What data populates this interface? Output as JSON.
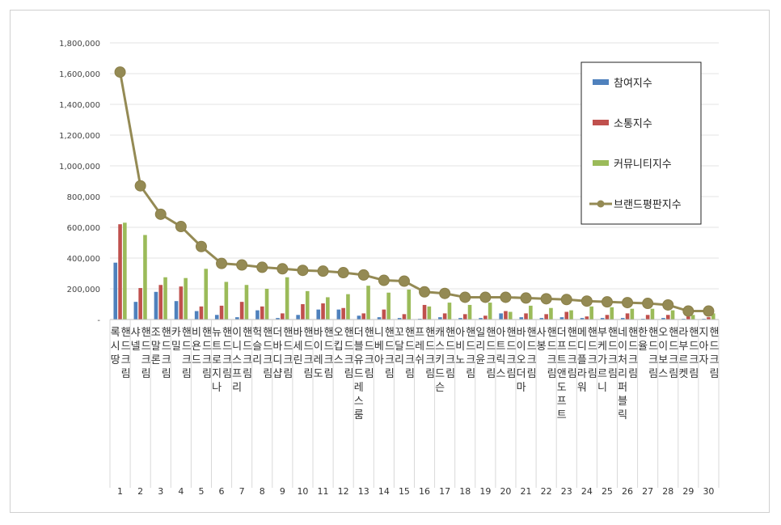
{
  "chart_data": {
    "type": "bar",
    "ylim": [
      0,
      1800000
    ],
    "yticks": [
      "-",
      "200,000",
      "400,000",
      "600,000",
      "800,000",
      "1,000,000",
      "1,200,000",
      "1,400,000",
      "1,600,000",
      "1,800,000"
    ],
    "legend_position": "top-right",
    "grid": true,
    "indices": [
      "1",
      "2",
      "3",
      "4",
      "5",
      "6",
      "7",
      "8",
      "9",
      "10",
      "11",
      "12",
      "13",
      "14",
      "15",
      "16",
      "17",
      "18",
      "19",
      "20",
      "21",
      "22",
      "23",
      "24",
      "25",
      "26",
      "27",
      "28",
      "29",
      "30"
    ],
    "categories": [
      "록시땅 핸드크림",
      "샤넬 핸드크림",
      "조말론 핸드크림",
      "카밀 핸드크림",
      "비욘드 핸드크림",
      "뉴트로지나 핸드크림",
      "이니스프리 핸드크림",
      "헉슬리 핸드크림",
      "더바디샵 핸드크림",
      "바세린 핸드크림",
      "바이레도 핸드크림",
      "오킵스 핸드크림",
      "더블유드레스룸 핸드크림",
      "니베아 핸드크림",
      "꼬달리 핸드크림",
      "프레쉬 핸드크림",
      "캐스키드슨 핸드크림",
      "아비노 핸드크림",
      "일리윤 핸드크림",
      "아트릭스 핸드크림",
      "바이오더마 핸드크림",
      "사봉 핸드크림",
      "더프트앤도프트 핸드크림",
      "메디플라워 핸드크림",
      "부케가르니 핸드크림",
      "네이처리퍼블릭 핸드크림",
      "한율 핸드크림",
      "오이보스 핸드크림",
      "라부르켓 핸드크림",
      "지아자 핸드크림"
    ],
    "series": [
      {
        "name": "참여지수",
        "type": "bar",
        "color": "#4f81bd",
        "values": [
          370000,
          115000,
          180000,
          120000,
          55000,
          30000,
          15000,
          60000,
          10000,
          30000,
          65000,
          65000,
          25000,
          15000,
          10000,
          5000,
          15000,
          10000,
          10000,
          40000,
          15000,
          10000,
          15000,
          10000,
          10000,
          10000,
          5000,
          10000,
          5000,
          5000
        ]
      },
      {
        "name": "소통지수",
        "type": "bar",
        "color": "#c0504d",
        "values": [
          620000,
          205000,
          225000,
          215000,
          85000,
          90000,
          115000,
          85000,
          40000,
          100000,
          105000,
          75000,
          40000,
          65000,
          35000,
          95000,
          40000,
          35000,
          25000,
          55000,
          40000,
          35000,
          50000,
          20000,
          30000,
          40000,
          30000,
          30000,
          20000,
          15000
        ]
      },
      {
        "name": "커뮤니티지수",
        "type": "bar",
        "color": "#9bbb59",
        "values": [
          630000,
          550000,
          275000,
          270000,
          330000,
          245000,
          225000,
          200000,
          275000,
          185000,
          145000,
          165000,
          220000,
          175000,
          195000,
          85000,
          110000,
          95000,
          110000,
          50000,
          90000,
          75000,
          60000,
          85000,
          80000,
          70000,
          70000,
          60000,
          30000,
          40000
        ]
      },
      {
        "name": "브랜드평판지수",
        "type": "line",
        "color": "#948a54",
        "values": [
          1610000,
          870000,
          685000,
          605000,
          475000,
          365000,
          355000,
          340000,
          330000,
          320000,
          315000,
          305000,
          290000,
          255000,
          250000,
          180000,
          170000,
          145000,
          145000,
          145000,
          140000,
          135000,
          130000,
          120000,
          115000,
          110000,
          105000,
          95000,
          55000,
          55000
        ]
      }
    ]
  }
}
